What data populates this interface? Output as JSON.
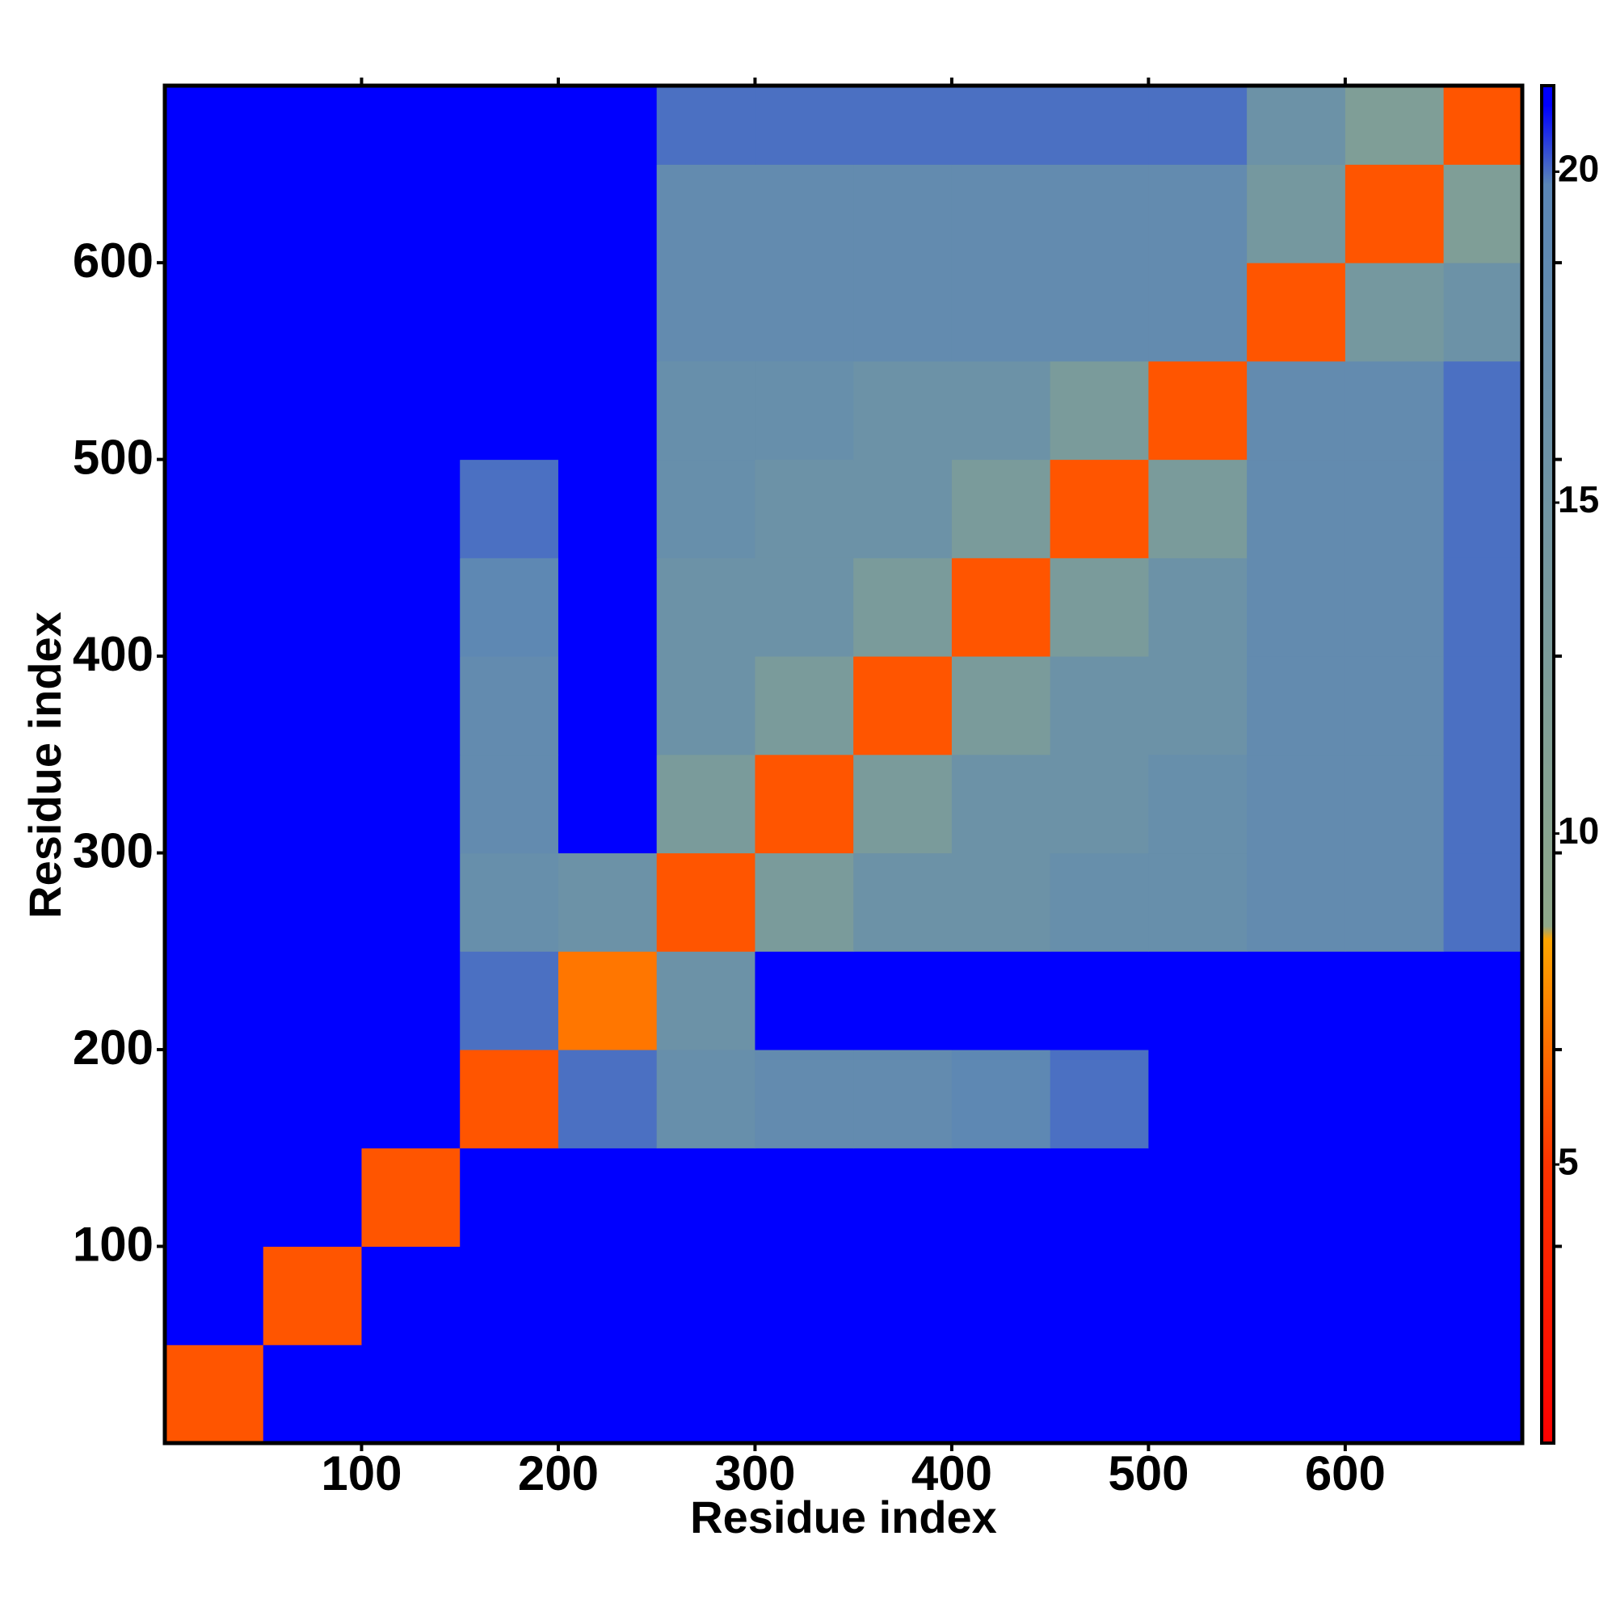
{
  "chart_data": {
    "type": "heatmap",
    "x_label": "Residue index",
    "y_label": "Residue index",
    "xbins": [
      0,
      50,
      100,
      150,
      200,
      250,
      300,
      350,
      400,
      450,
      500,
      550,
      600,
      650,
      690
    ],
    "ybins": [
      0,
      50,
      100,
      150,
      200,
      250,
      300,
      350,
      400,
      450,
      500,
      550,
      600,
      650,
      690
    ],
    "z": [
      [
        6,
        21,
        21,
        21,
        21,
        21,
        21,
        21,
        21,
        21,
        21,
        21,
        21,
        21
      ],
      [
        21,
        6,
        21,
        21,
        21,
        21,
        21,
        21,
        21,
        21,
        21,
        21,
        21,
        21
      ],
      [
        21,
        21,
        6,
        21,
        21,
        21,
        21,
        21,
        21,
        21,
        21,
        21,
        21,
        21
      ],
      [
        21,
        21,
        21,
        6,
        20,
        17,
        18,
        18,
        19,
        20,
        21,
        21,
        21,
        21
      ],
      [
        21,
        21,
        21,
        20,
        7,
        16,
        21,
        21,
        21,
        21,
        21,
        21,
        21,
        21
      ],
      [
        21,
        21,
        21,
        17,
        16,
        6,
        13,
        16,
        16,
        17,
        17,
        18,
        18,
        20
      ],
      [
        21,
        21,
        21,
        18,
        21,
        13,
        6,
        13,
        16,
        16,
        17,
        18,
        18,
        20
      ],
      [
        21,
        21,
        21,
        18,
        21,
        16,
        13,
        6,
        13,
        16,
        16,
        18,
        18,
        20
      ],
      [
        21,
        21,
        21,
        19,
        21,
        16,
        16,
        13,
        6,
        13,
        16,
        18,
        18,
        20
      ],
      [
        21,
        21,
        21,
        20,
        21,
        17,
        16,
        16,
        13,
        6,
        13,
        18,
        18,
        20
      ],
      [
        21,
        21,
        21,
        21,
        21,
        17,
        17,
        16,
        16,
        13,
        6,
        18,
        18,
        20
      ],
      [
        21,
        21,
        21,
        21,
        21,
        18,
        18,
        18,
        18,
        18,
        18,
        6,
        14,
        16
      ],
      [
        21,
        21,
        21,
        21,
        21,
        18,
        18,
        18,
        18,
        18,
        18,
        14,
        6,
        12
      ],
      [
        21,
        21,
        21,
        21,
        21,
        20,
        20,
        20,
        20,
        20,
        20,
        16,
        12,
        6
      ]
    ],
    "xlim": [
      0,
      690
    ],
    "ylim": [
      0,
      690
    ],
    "xticks": [
      100,
      200,
      300,
      400,
      500,
      600
    ],
    "yticks": [
      100,
      200,
      300,
      400,
      500,
      600
    ],
    "clim": [
      0.79,
      21.3
    ],
    "cticks": [
      5,
      10,
      15,
      20
    ],
    "colorscale": [
      {
        "value": 0.79,
        "color": "#ff0000"
      },
      {
        "value": 5,
        "color": "#ff3300"
      },
      {
        "value": 8.4,
        "color": "#ffa500"
      },
      {
        "value": 8.6,
        "color": "#8fa88a"
      },
      {
        "value": 19.8,
        "color": "#5a86b6"
      },
      {
        "value": 21,
        "color": "#0000ff"
      }
    ]
  }
}
